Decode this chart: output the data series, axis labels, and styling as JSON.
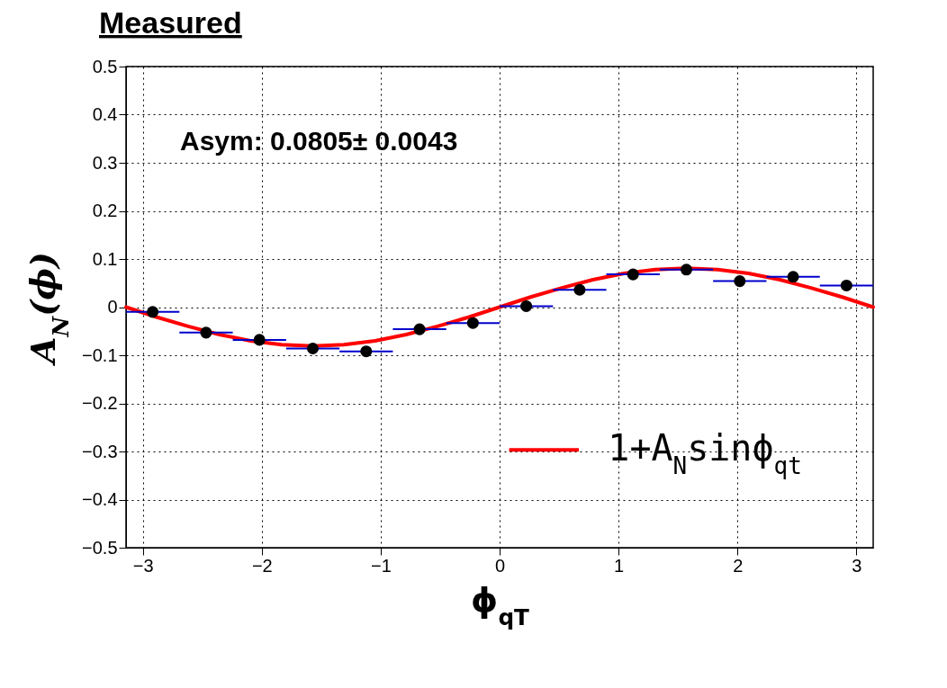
{
  "chart_data": {
    "type": "scatter",
    "title": "Measured",
    "xlabel": "ϕ$_{qT}$",
    "ylabel": "A$_{N}$(ϕ)",
    "annotations": [
      "Asym: 0.0805± 0.0043"
    ],
    "xlim": [
      -3.1416,
      3.1416
    ],
    "ylim": [
      -0.5,
      0.5
    ],
    "xticks": [
      -3,
      -2,
      -1,
      0,
      1,
      2,
      3
    ],
    "yticks": [
      -0.5,
      -0.4,
      -0.3,
      -0.2,
      -0.1,
      {
        "value": 0,
        "label": "0"
      },
      0.1,
      0.2,
      0.3,
      0.4,
      0.5
    ],
    "grid": true,
    "legend": "bottom right",
    "series": [
      {
        "color": "#000000",
        "marker": "circle",
        "x": [
          -2.9172,
          -2.4684,
          -2.0196,
          -1.5708,
          -1.122,
          -0.6732,
          -0.2244,
          0.2244,
          0.6732,
          1.122,
          1.5708,
          2.0196,
          2.4684,
          2.9172
        ],
        "values": [
          -0.01,
          -0.053,
          -0.068,
          -0.086,
          -0.092,
          -0.046,
          -0.033,
          0.002,
          0.036,
          0.068,
          0.078,
          0.054,
          0.063,
          0.045
        ],
        "errors": [
          0.005,
          0.005,
          0.005,
          0.005,
          0.005,
          0.005,
          0.005,
          0.005,
          0.005,
          0.005,
          0.005,
          0.005,
          0.005,
          0.005
        ],
        "xerrors": [
          0.2244,
          0.2244,
          0.2244,
          0.2244,
          0.2244,
          0.2244,
          0.2244,
          0.2244,
          0.2244,
          0.2244,
          0.2244,
          0.2244,
          0.2244,
          0.2244
        ]
      },
      {
        "type": "line",
        "name": "1+A$_{N}$sinϕ$_{qt}$",
        "color": "#ff0000",
        "x": [
          -3.1416,
          -2.8798,
          -2.618,
          -2.3562,
          -2.0944,
          -1.8326,
          -1.5708,
          -1.309,
          -1.0472,
          -0.7854,
          -0.5236,
          -0.2618,
          0,
          0.2618,
          0.5236,
          0.7854,
          1.0472,
          1.309,
          1.5708,
          1.8326,
          2.0944,
          2.3562,
          2.618,
          2.8798,
          3.1416
        ],
        "values": [
          0,
          -0.021,
          -0.04,
          -0.057,
          -0.07,
          -0.078,
          -0.081,
          -0.078,
          -0.07,
          -0.057,
          -0.04,
          -0.021,
          0,
          0.021,
          0.04,
          0.057,
          0.07,
          0.078,
          0.081,
          0.078,
          0.07,
          0.057,
          0.04,
          0.021,
          0
        ]
      }
    ]
  }
}
